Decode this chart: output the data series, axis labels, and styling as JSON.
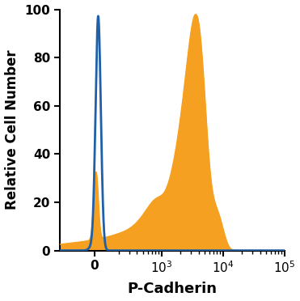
{
  "title": "",
  "xlabel": "P-Cadherin",
  "ylabel": "Relative Cell Number",
  "ylim": [
    0,
    100
  ],
  "yticks": [
    0,
    20,
    40,
    60,
    80,
    100
  ],
  "xlabel_fontsize": 13,
  "ylabel_fontsize": 12,
  "tick_fontsize": 11,
  "blue_color": "#2060a8",
  "orange_color": "#f5a020",
  "blue_linewidth": 2.0,
  "orange_linewidth": 1.0,
  "background_color": "#ffffff",
  "linthresh": 200,
  "linscale": 0.35
}
